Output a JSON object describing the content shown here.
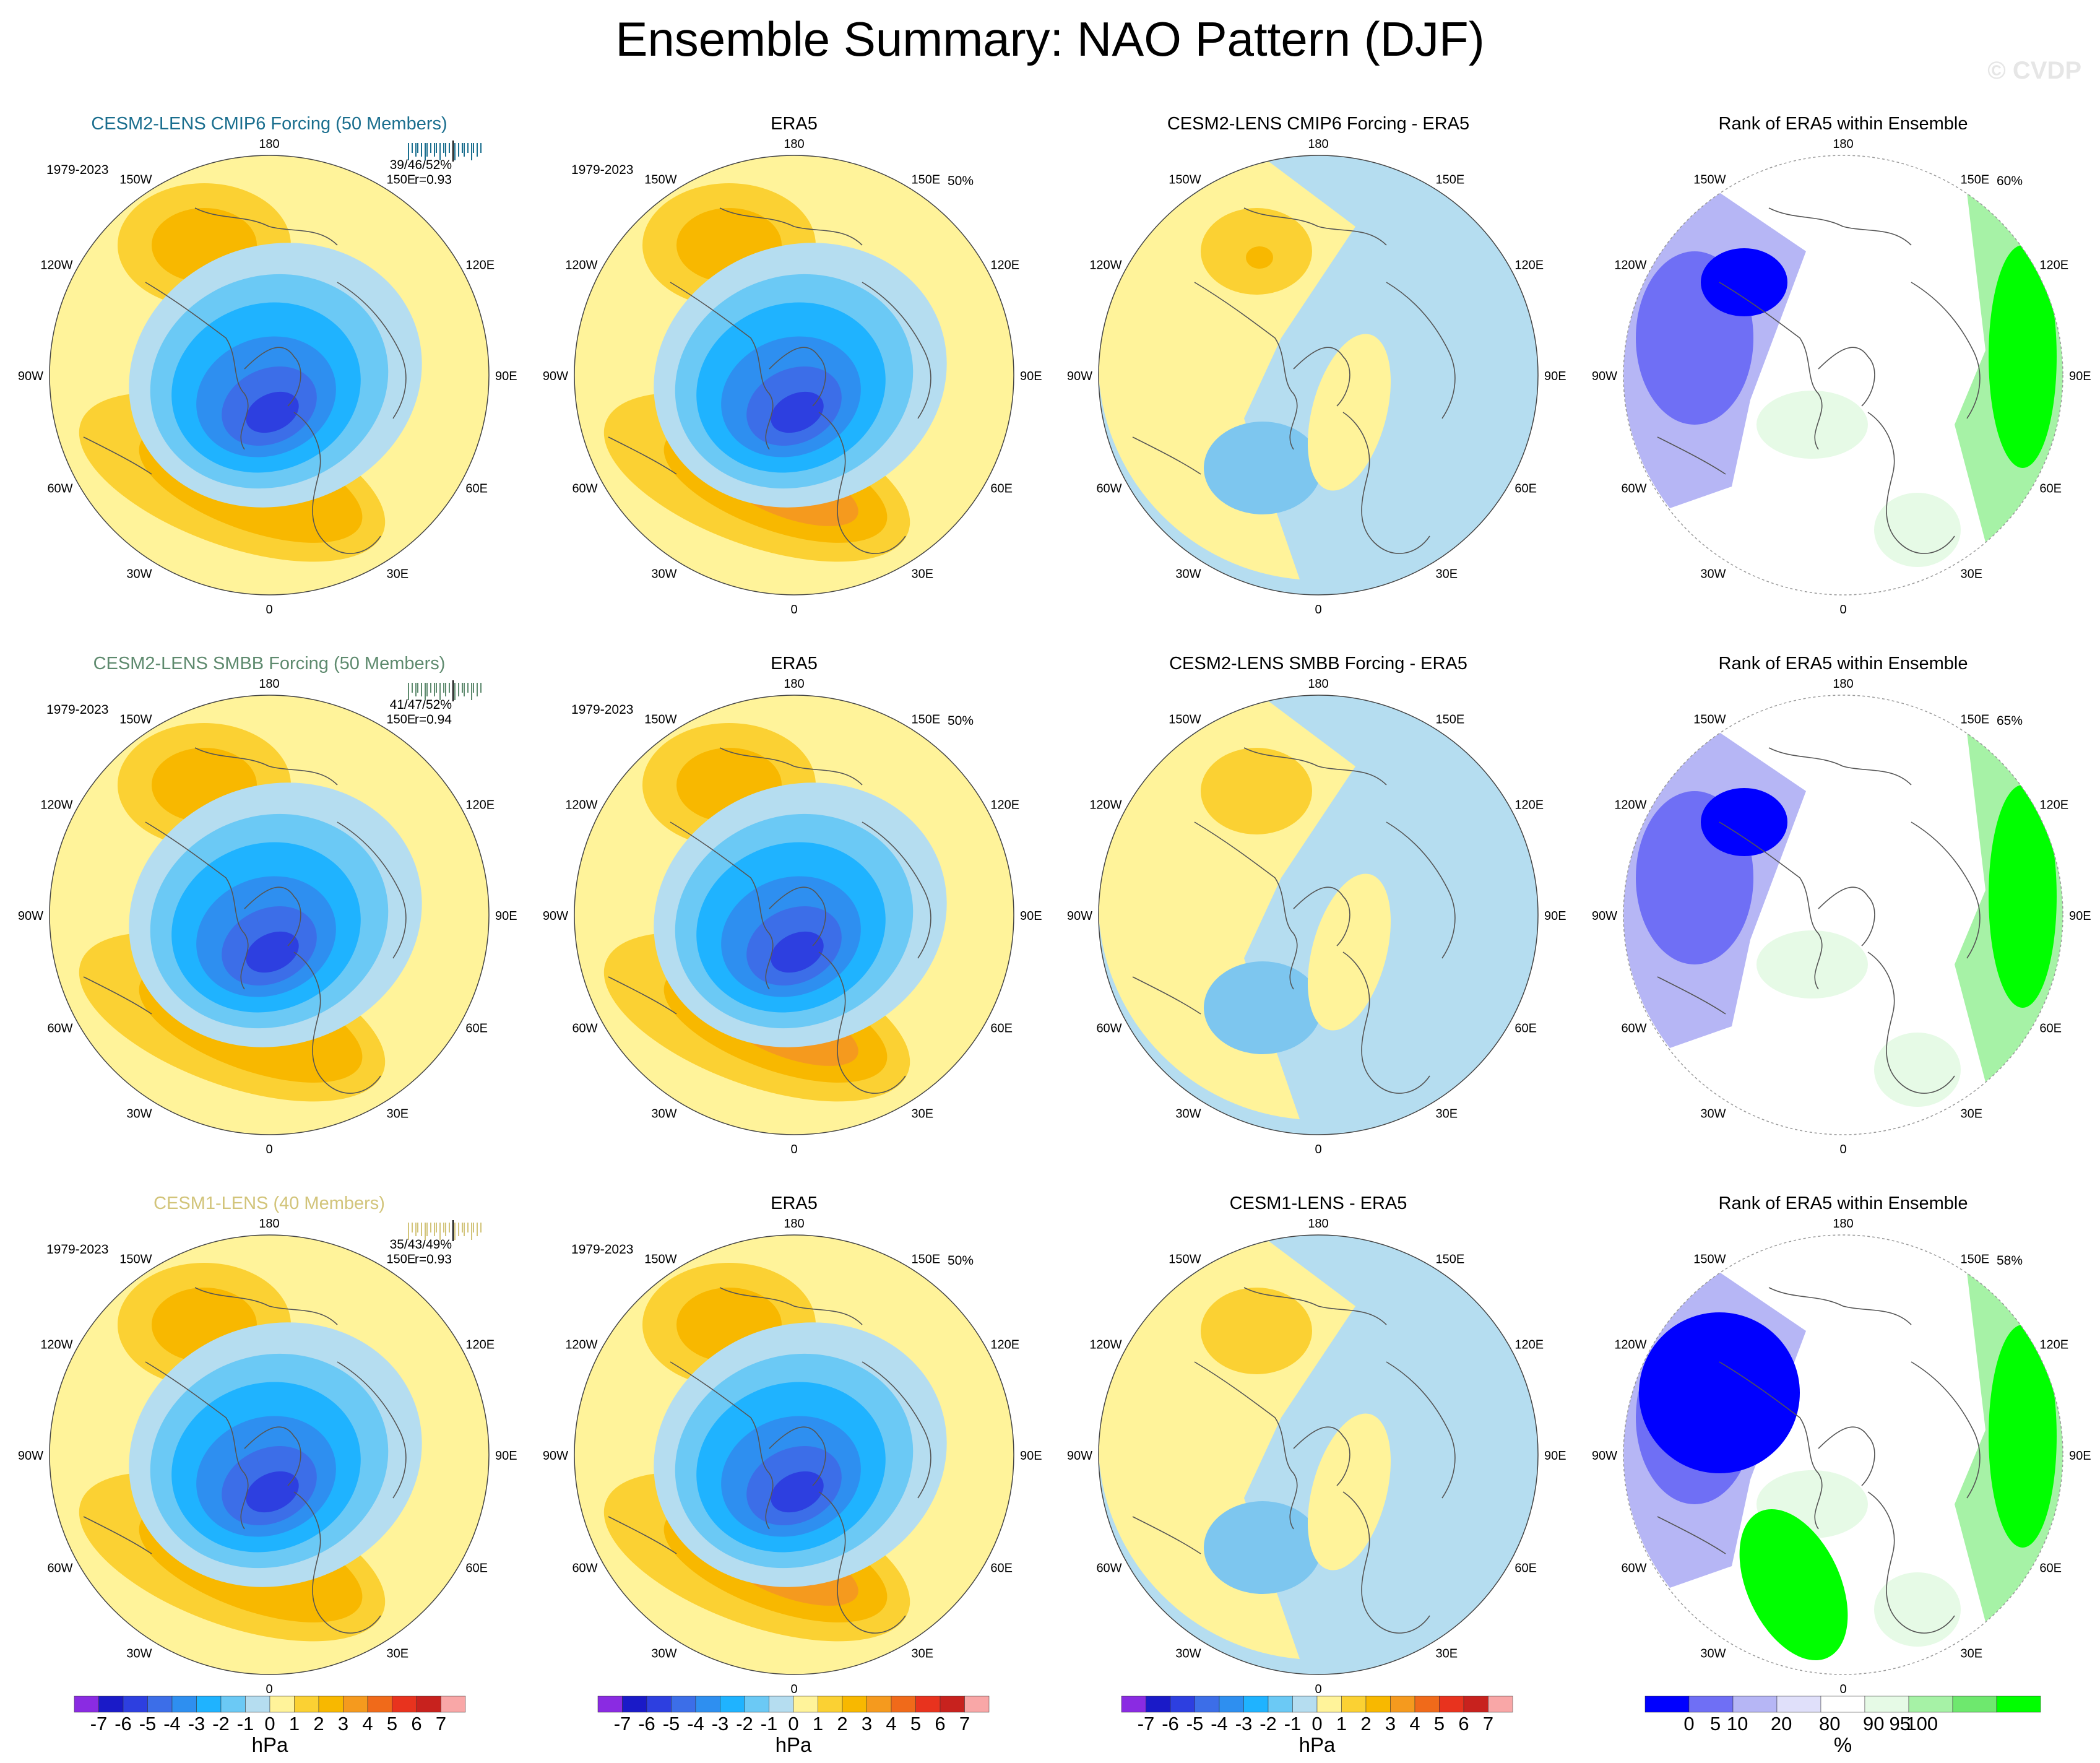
{
  "title": "Ensemble Summary: NAO Pattern (DJF)",
  "watermark": "© CVDP",
  "colors": {
    "hpa_scale": [
      "#8a2be2",
      "#1a1ac8",
      "#2d3fe0",
      "#3c6ee8",
      "#2e8ff0",
      "#1fb3ff",
      "#6bc9f5",
      "#b5ddf0",
      "#fff39a",
      "#fbd133",
      "#f8b800",
      "#f59a1e",
      "#f06a1a",
      "#e8331e",
      "#c8221e",
      "#f9a7a7"
    ],
    "pct_scale": [
      "#0000ff",
      "#6f6ff5",
      "#b6b6f5",
      "#e0e0fa",
      "#ffffff",
      "#e6fae6",
      "#a6f2a6",
      "#6ee86e",
      "#00ff00"
    ],
    "row_title_colors": [
      "#1a6e8e",
      "#5e8a6e",
      "#d2c47a"
    ]
  },
  "lon_labels": {
    "top": "180",
    "upper_left": "150W",
    "upper_right": "150E",
    "mid_left_upper": "120W",
    "mid_right_upper": "120E",
    "left": "90W",
    "right": "90E",
    "mid_left_lower": "60W",
    "mid_right_lower": "60E",
    "lower_left": "30W",
    "lower_right": "30E",
    "bottom": "0"
  },
  "rows": [
    {
      "panels": [
        {
          "title": "CESM2-LENS CMIP6 Forcing (50 Members)",
          "period": "1979-2023",
          "stat": "39/46/52%",
          "corr": "r=0.93",
          "kind": "ens"
        },
        {
          "title": "ERA5",
          "period": "1979-2023",
          "stat": "50%",
          "kind": "obs"
        },
        {
          "title": "CESM2-LENS CMIP6 Forcing - ERA5",
          "kind": "diff"
        },
        {
          "title": "Rank of ERA5 within Ensemble",
          "stat": "60%",
          "kind": "rank"
        }
      ]
    },
    {
      "panels": [
        {
          "title": "CESM2-LENS SMBB Forcing (50 Members)",
          "period": "1979-2023",
          "stat": "41/47/52%",
          "corr": "r=0.94",
          "kind": "ens"
        },
        {
          "title": "ERA5",
          "period": "1979-2023",
          "stat": "50%",
          "kind": "obs"
        },
        {
          "title": "CESM2-LENS SMBB Forcing - ERA5",
          "kind": "diff"
        },
        {
          "title": "Rank of ERA5 within Ensemble",
          "stat": "65%",
          "kind": "rank"
        }
      ]
    },
    {
      "panels": [
        {
          "title": "CESM1-LENS (40 Members)",
          "period": "1979-2023",
          "stat": "35/43/49%",
          "corr": "r=0.93",
          "kind": "ens"
        },
        {
          "title": "ERA5",
          "period": "1979-2023",
          "stat": "50%",
          "kind": "obs"
        },
        {
          "title": "CESM1-LENS - ERA5",
          "kind": "diff"
        },
        {
          "title": "Rank of ERA5 within Ensemble",
          "stat": "58%",
          "kind": "rank"
        }
      ]
    }
  ],
  "chart_data": {
    "type": "heatmap",
    "projection": "north polar stereographic",
    "variable": "sea level pressure NAO pattern",
    "season": "DJF",
    "hpa_colorbar": {
      "ticks": [
        "-7",
        "-6",
        "-5",
        "-4",
        "-3",
        "-2",
        "-1",
        "0",
        "1",
        "2",
        "3",
        "4",
        "5",
        "6",
        "7"
      ],
      "unit": "hPa"
    },
    "pct_colorbar": {
      "ticks": [
        "0",
        "5",
        "10",
        "20",
        "80",
        "90",
        "95",
        "100"
      ],
      "unit": "%"
    },
    "approx_centers": {
      "icelandic_low_min_hpa": -6,
      "azores_high_max_hpa": 4,
      "pacific_high_max_hpa": 3
    }
  }
}
